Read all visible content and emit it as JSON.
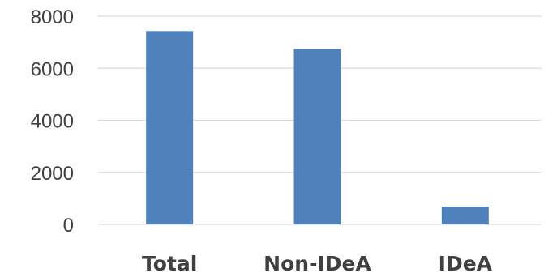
{
  "chart_data": {
    "type": "bar",
    "categories": [
      "Total",
      "Non-IDeA",
      "IDeA"
    ],
    "values": [
      7430,
      6740,
      680
    ],
    "title": "",
    "xlabel": "",
    "ylabel": "",
    "ylim": [
      0,
      8000
    ],
    "yticks": [
      "0",
      "2000",
      "4000",
      "6000",
      "8000"
    ],
    "grid": true,
    "legend": "none",
    "colors": {
      "bar": "#4F81BD",
      "grid": "#D9D9D9",
      "text": "#404040"
    }
  }
}
